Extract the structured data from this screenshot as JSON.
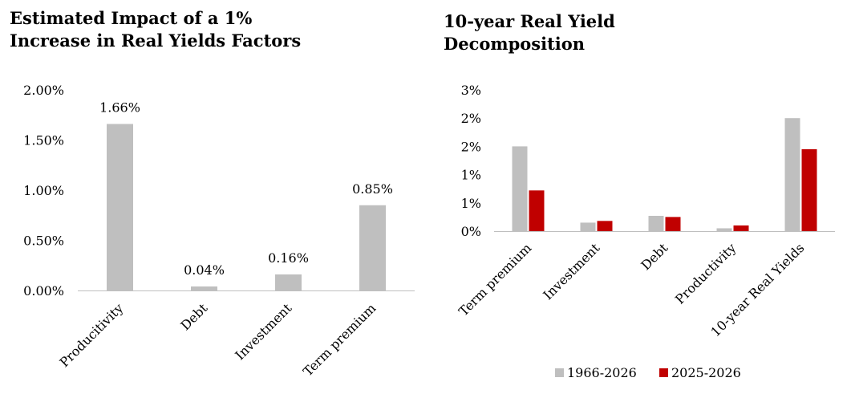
{
  "chart_data": [
    {
      "type": "bar",
      "title_lines": [
        "Estimated Impact of a 1%",
        "Increase in Real Yields Factors"
      ],
      "categories": [
        "Producitivity",
        "Debt",
        "Investment",
        "Term premium"
      ],
      "values": [
        1.66,
        0.04,
        0.16,
        0.85
      ],
      "data_labels": [
        "1.66%",
        "0.04%",
        "0.16%",
        "0.85%"
      ],
      "yticks": [
        "0.00%",
        "0.50%",
        "1.00%",
        "1.50%",
        "2.00%"
      ],
      "ylim": [
        0,
        2.0
      ],
      "grid": false,
      "legend": false,
      "bar_color": "#bfbfbf"
    },
    {
      "type": "bar",
      "title_lines": [
        "10-year Real Yield",
        "Decomposition"
      ],
      "categories": [
        "Term premium",
        "Investment",
        "Debt",
        "Productivity",
        "10-year Real Yields"
      ],
      "series": [
        {
          "name": "1966-2026",
          "color": "#bfbfbf",
          "values": [
            1.5,
            0.15,
            0.27,
            0.05,
            2.0
          ]
        },
        {
          "name": "2025-2026",
          "color": "#c00000",
          "values": [
            0.72,
            0.18,
            0.25,
            0.1,
            1.45
          ]
        }
      ],
      "yticks": [
        "0%",
        "1%",
        "1%",
        "2%",
        "2%",
        "3%"
      ],
      "ylim": [
        0,
        2.5
      ],
      "grid": false,
      "legend": "bottom"
    }
  ]
}
